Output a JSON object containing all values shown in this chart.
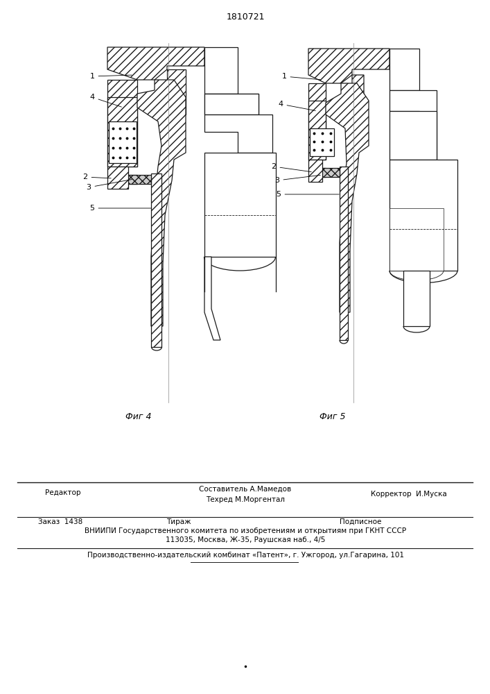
{
  "patent_number": "1810721",
  "fig4_label": "Фиг 4",
  "fig5_label": "Фиг 5",
  "footer_left": "Редактор",
  "footer_center1": "Составитель А.Мамедов",
  "footer_center2": "Техред М.Моргентал",
  "footer_right": "Корректор  И.Муска",
  "footer_order": "Заказ  1438",
  "footer_tirazh": "Тираж",
  "footer_podp": "Подписное",
  "footer_vniip1": "ВНИИПИ Государственного комитета по изобретениям и открытиям при ГКНТ СССР",
  "footer_vniip2": "113035, Москва, Ж-35, Раушская наб., 4/5",
  "footer_patent": "Производственно-издательский комбинат «Патент», г. Ужгород, ул.Гагарина, 101",
  "bg_color": "#ffffff",
  "lc": "#1a1a1a"
}
